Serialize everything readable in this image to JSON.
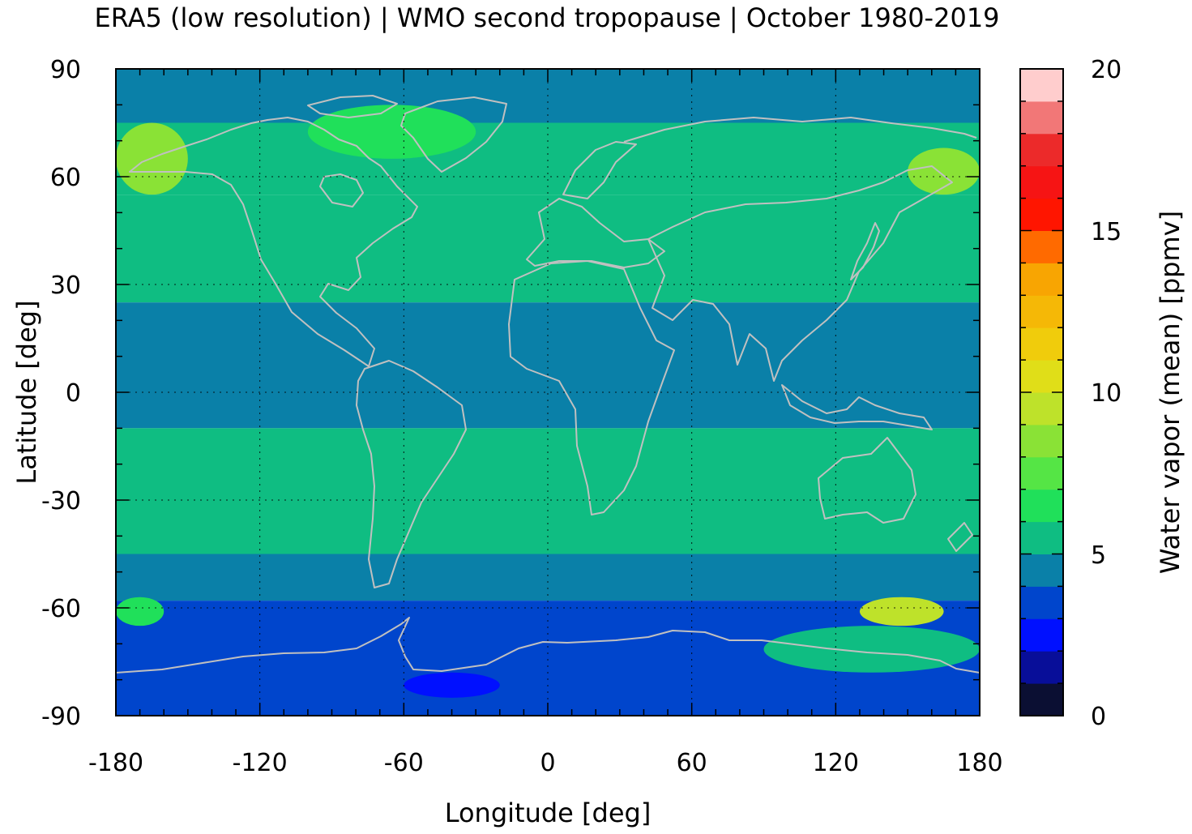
{
  "chart_data": {
    "type": "heatmap",
    "title": "ERA5 (low resolution) | WMO second tropopause | October 1980-2019",
    "xlabel": "Longitude [deg]",
    "ylabel": "Latitude [deg]",
    "colorbar_label": "Water vapor (mean) [ppmv]",
    "xlim": [
      -180,
      180
    ],
    "ylim": [
      -90,
      90
    ],
    "x_ticks": [
      "-180",
      "-120",
      "-60",
      "0",
      "60",
      "120",
      "180"
    ],
    "y_ticks": [
      "90",
      "60",
      "30",
      "0",
      "-30",
      "-60",
      "-90"
    ],
    "colorbar_ticks": [
      "20",
      "15",
      "10",
      "5",
      "0"
    ],
    "clim": [
      0,
      20
    ],
    "grid": true,
    "coastlines_color": "#c0c0c0",
    "palette": [
      "#0b0f33",
      "#080e99",
      "#0010ff",
      "#0045cc",
      "#0a80a8",
      "#0fbd82",
      "#20e05a",
      "#55e545",
      "#8ae236",
      "#bee22a",
      "#e0de18",
      "#f0cc0c",
      "#f5b806",
      "#f8a502",
      "#ff6a00",
      "#ff1500",
      "#f61414",
      "#ec2a2a",
      "#f27777",
      "#ffcdcd"
    ],
    "latitude_bands": [
      {
        "lat": [
          75,
          90
        ],
        "value": 4.6
      },
      {
        "lat": [
          55,
          75
        ],
        "value": 5.9
      },
      {
        "lat": [
          25,
          55
        ],
        "value": 5.3
      },
      {
        "lat": [
          -10,
          25
        ],
        "value": 4.7
      },
      {
        "lat": [
          -45,
          -10
        ],
        "value": 5.3
      },
      {
        "lat": [
          -58,
          -45
        ],
        "value": 4.7
      },
      {
        "lat": [
          -90,
          -58
        ],
        "value": 3.6
      }
    ],
    "regional_values": [
      {
        "lon": [
          -180,
          -150
        ],
        "lat": [
          55,
          75
        ],
        "value": 8.3
      },
      {
        "lon": [
          150,
          180
        ],
        "lat": [
          55,
          68
        ],
        "value": 8.8
      },
      {
        "lon": [
          -100,
          -30
        ],
        "lat": [
          65,
          80
        ],
        "value": 6.6
      },
      {
        "lon": [
          130,
          165
        ],
        "lat": [
          -65,
          -57
        ],
        "value": 9.6
      },
      {
        "lon": [
          -180,
          -160
        ],
        "lat": [
          -65,
          -57
        ],
        "value": 6.8
      },
      {
        "lon": [
          90,
          180
        ],
        "lat": [
          -78,
          -65
        ],
        "value": 5.2
      },
      {
        "lon": [
          -60,
          -20
        ],
        "lat": [
          -85,
          -78
        ],
        "value": 2.7
      }
    ]
  }
}
